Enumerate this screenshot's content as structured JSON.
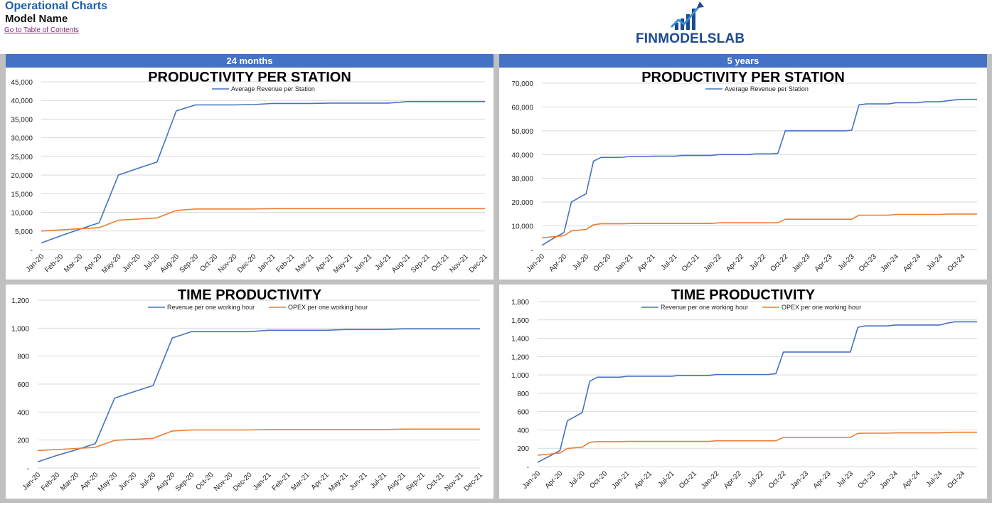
{
  "header": {
    "title": "Operational Charts",
    "model": "Model Name",
    "toc_link": "Go to Table of Contents"
  },
  "logo": {
    "text": "FINMODELSLAB"
  },
  "bands": {
    "left": "24 months",
    "right": "5  years"
  },
  "colors": {
    "revenue": "#4472c4",
    "opex": "#ed7d31",
    "band": "#4472c4",
    "grid": "#d9d9d9"
  },
  "chart_data": [
    {
      "id": "chart-tl",
      "type": "line",
      "title": "PRODUCTIVITY PER STATION",
      "ylim": [
        0,
        45000
      ],
      "yticks": [
        "-",
        "5,000",
        "10,000",
        "15,000",
        "20,000",
        "25,000",
        "30,000",
        "35,000",
        "40,000",
        "45,000"
      ],
      "ytick_values": [
        0,
        5000,
        10000,
        15000,
        20000,
        25000,
        30000,
        35000,
        40000,
        45000
      ],
      "categories": [
        "Jan-20",
        "Feb-20",
        "Mar-20",
        "Apr-20",
        "May-20",
        "Jun-20",
        "Jul-20",
        "Aug-20",
        "Sep-20",
        "Oct-20",
        "Nov-20",
        "Dec-20",
        "Jan-21",
        "Feb-21",
        "Mar-21",
        "Apr-21",
        "May-21",
        "Jun-21",
        "Jul-21",
        "Aug-21",
        "Sep-21",
        "Oct-21",
        "Nov-21",
        "Dec-21"
      ],
      "tick_labels": [
        "Jan-20",
        "Feb-20",
        "Mar-20",
        "Apr-20",
        "May-20",
        "Jun-20",
        "Jul-20",
        "Aug-20",
        "Sep-20",
        "Oct-20",
        "Nov-20",
        "Dec-20",
        "Jan-21",
        "Feb-21",
        "Mar-21",
        "Apr-21",
        "May-21",
        "Jun-21",
        "Jul-21",
        "Aug-21",
        "Sep-21",
        "Oct-21",
        "Nov-21",
        "Dec-21"
      ],
      "legend": [
        "Average Revenue per Station"
      ],
      "series": [
        {
          "name": "Average Revenue per Station",
          "color": "#4472c4",
          "values": [
            1800,
            3700,
            5500,
            7200,
            20000,
            21800,
            23500,
            37200,
            38800,
            38800,
            38800,
            38900,
            39200,
            39200,
            39200,
            39300,
            39300,
            39300,
            39300,
            39700,
            39700,
            39700,
            39700,
            39700
          ]
        },
        {
          "color": "#ed7d31",
          "values": [
            5000,
            5300,
            5600,
            5900,
            7900,
            8200,
            8500,
            10500,
            10900,
            10900,
            10900,
            10900,
            11000,
            11000,
            11000,
            11000,
            11000,
            11000,
            11000,
            11000,
            11000,
            11000,
            11000,
            11000
          ]
        }
      ]
    },
    {
      "id": "chart-tr",
      "type": "line",
      "title": "PRODUCTIVITY PER STATION",
      "ylim": [
        0,
        70000
      ],
      "yticks": [
        "-",
        "10,000",
        "20,000",
        "30,000",
        "40,000",
        "50,000",
        "60,000",
        "70,000"
      ],
      "ytick_values": [
        0,
        10000,
        20000,
        30000,
        40000,
        50000,
        60000,
        70000
      ],
      "categories": [
        "Jan-20",
        "Feb-20",
        "Mar-20",
        "Apr-20",
        "May-20",
        "Jun-20",
        "Jul-20",
        "Aug-20",
        "Sep-20",
        "Oct-20",
        "Nov-20",
        "Dec-20",
        "Jan-21",
        "Feb-21",
        "Mar-21",
        "Apr-21",
        "May-21",
        "Jun-21",
        "Jul-21",
        "Aug-21",
        "Sep-21",
        "Oct-21",
        "Nov-21",
        "Dec-21",
        "Jan-22",
        "Feb-22",
        "Mar-22",
        "Apr-22",
        "May-22",
        "Jun-22",
        "Jul-22",
        "Aug-22",
        "Sep-22",
        "Oct-22",
        "Nov-22",
        "Dec-22",
        "Jan-23",
        "Feb-23",
        "Mar-23",
        "Apr-23",
        "May-23",
        "Jun-23",
        "Jul-23",
        "Aug-23",
        "Sep-23",
        "Oct-23",
        "Nov-23",
        "Dec-23",
        "Jan-24",
        "Feb-24",
        "Mar-24",
        "Apr-24",
        "May-24",
        "Jun-24",
        "Jul-24",
        "Aug-24",
        "Sep-24",
        "Oct-24",
        "Nov-24",
        "Dec-24"
      ],
      "tick_labels": [
        "Jan-20",
        "Apr-20",
        "Jul-20",
        "Oct-20",
        "Jan-21",
        "Apr-21",
        "Jul-21",
        "Oct-21",
        "Jan-22",
        "Apr-22",
        "Jul-22",
        "Oct-22",
        "Jan-23",
        "Apr-23",
        "Jul-23",
        "Oct-23",
        "Jan-24",
        "Apr-24",
        "Jul-24",
        "Oct-24"
      ],
      "legend": [
        "Average Revenue per Station"
      ],
      "series": [
        {
          "name": "Average Revenue per Station",
          "color": "#4472c4",
          "values": [
            1800,
            3700,
            5500,
            7200,
            20000,
            21800,
            23500,
            37200,
            38800,
            38800,
            38800,
            38900,
            39200,
            39200,
            39200,
            39300,
            39300,
            39300,
            39300,
            39600,
            39600,
            39600,
            39600,
            39600,
            40000,
            40000,
            40000,
            40000,
            40000,
            40300,
            40300,
            40300,
            40500,
            50000,
            50000,
            50000,
            50000,
            50000,
            50000,
            50000,
            50000,
            50000,
            50200,
            60900,
            61300,
            61300,
            61300,
            61300,
            61800,
            61800,
            61800,
            61800,
            62200,
            62200,
            62200,
            62600,
            63000,
            63200,
            63200,
            63200
          ]
        },
        {
          "color": "#ed7d31",
          "values": [
            5000,
            5300,
            5600,
            5900,
            7900,
            8200,
            8500,
            10500,
            10900,
            10900,
            10900,
            10900,
            11000,
            11000,
            11000,
            11000,
            11000,
            11000,
            11000,
            11000,
            11000,
            11000,
            11000,
            11000,
            11300,
            11300,
            11300,
            11300,
            11300,
            11300,
            11300,
            11300,
            11300,
            12800,
            12800,
            12800,
            12800,
            12800,
            12800,
            12800,
            12800,
            12800,
            12800,
            14500,
            14500,
            14500,
            14500,
            14500,
            14800,
            14800,
            14800,
            14800,
            14800,
            14800,
            14800,
            15000,
            15000,
            15000,
            15000,
            15000
          ]
        }
      ]
    },
    {
      "id": "chart-bl",
      "type": "line",
      "title": "TIME PRODUCTIVITY",
      "ylim": [
        0,
        1200
      ],
      "yticks": [
        "-",
        "200",
        "400",
        "600",
        "800",
        "1,000",
        "1,200"
      ],
      "ytick_values": [
        0,
        200,
        400,
        600,
        800,
        1000,
        1200
      ],
      "categories": [
        "Jan-20",
        "Feb-20",
        "Mar-20",
        "Apr-20",
        "May-20",
        "Jun-20",
        "Jul-20",
        "Aug-20",
        "Sep-20",
        "Oct-20",
        "Nov-20",
        "Dec-20",
        "Jan-21",
        "Feb-21",
        "Mar-21",
        "Apr-21",
        "May-21",
        "Jun-21",
        "Jul-21",
        "Aug-21",
        "Sep-21",
        "Oct-21",
        "Nov-21",
        "Dec-21"
      ],
      "tick_labels": [
        "Jan-20",
        "Feb-20",
        "Mar-20",
        "Apr-20",
        "May-20",
        "Jun-20",
        "Jul-20",
        "Aug-20",
        "Sep-20",
        "Oct-20",
        "Nov-20",
        "Dec-20",
        "Jan-21",
        "Feb-21",
        "Mar-21",
        "Apr-21",
        "May-21",
        "Jun-21",
        "Jul-21",
        "Aug-21",
        "Sep-21",
        "Oct-21",
        "Nov-21",
        "Dec-21"
      ],
      "legend": [
        "Revenue per one working hour",
        "OPEX per one working hour"
      ],
      "series": [
        {
          "name": "Revenue per one working hour",
          "color": "#4472c4",
          "values": [
            45,
            90,
            130,
            175,
            500,
            545,
            590,
            930,
            975,
            975,
            975,
            975,
            985,
            985,
            985,
            985,
            990,
            990,
            990,
            995,
            995,
            995,
            995,
            995
          ]
        },
        {
          "name": "OPEX per one working hour",
          "color": "#ed7d31",
          "values": [
            125,
            132,
            140,
            148,
            198,
            205,
            212,
            265,
            272,
            272,
            272,
            272,
            275,
            275,
            275,
            275,
            275,
            275,
            275,
            278,
            278,
            278,
            278,
            278
          ]
        }
      ]
    },
    {
      "id": "chart-br",
      "type": "line",
      "title": "TIME PRODUCTIVITY",
      "ylim": [
        0,
        1800
      ],
      "yticks": [
        "-",
        "200",
        "400",
        "600",
        "800",
        "1,000",
        "1,200",
        "1,400",
        "1,600",
        "1,800"
      ],
      "ytick_values": [
        0,
        200,
        400,
        600,
        800,
        1000,
        1200,
        1400,
        1600,
        1800
      ],
      "categories": [
        "Jan-20",
        "Feb-20",
        "Mar-20",
        "Apr-20",
        "May-20",
        "Jun-20",
        "Jul-20",
        "Aug-20",
        "Sep-20",
        "Oct-20",
        "Nov-20",
        "Dec-20",
        "Jan-21",
        "Feb-21",
        "Mar-21",
        "Apr-21",
        "May-21",
        "Jun-21",
        "Jul-21",
        "Aug-21",
        "Sep-21",
        "Oct-21",
        "Nov-21",
        "Dec-21",
        "Jan-22",
        "Feb-22",
        "Mar-22",
        "Apr-22",
        "May-22",
        "Jun-22",
        "Jul-22",
        "Aug-22",
        "Sep-22",
        "Oct-22",
        "Nov-22",
        "Dec-22",
        "Jan-23",
        "Feb-23",
        "Mar-23",
        "Apr-23",
        "May-23",
        "Jun-23",
        "Jul-23",
        "Aug-23",
        "Sep-23",
        "Oct-23",
        "Nov-23",
        "Dec-23",
        "Jan-24",
        "Feb-24",
        "Mar-24",
        "Apr-24",
        "May-24",
        "Jun-24",
        "Jul-24",
        "Aug-24",
        "Sep-24",
        "Oct-24",
        "Nov-24",
        "Dec-24"
      ],
      "tick_labels": [
        "Jan-20",
        "Apr-20",
        "Jul-20",
        "Oct-20",
        "Jan-21",
        "Apr-21",
        "Jul-21",
        "Oct-21",
        "Jan-22",
        "Apr-22",
        "Jul-22",
        "Oct-22",
        "Jan-23",
        "Apr-23",
        "Jul-23",
        "Oct-23",
        "Jan-24",
        "Apr-24",
        "Jul-24",
        "Oct-24"
      ],
      "legend": [
        "Revenue per one working hour",
        "OPEX per one working hour"
      ],
      "series": [
        {
          "name": "Revenue per one working hour",
          "color": "#4472c4",
          "values": [
            45,
            90,
            130,
            175,
            500,
            545,
            590,
            930,
            975,
            975,
            975,
            975,
            985,
            985,
            985,
            985,
            985,
            985,
            985,
            995,
            995,
            995,
            995,
            995,
            1005,
            1005,
            1005,
            1005,
            1005,
            1005,
            1005,
            1005,
            1015,
            1250,
            1250,
            1250,
            1250,
            1250,
            1250,
            1250,
            1250,
            1250,
            1250,
            1520,
            1535,
            1535,
            1535,
            1535,
            1545,
            1545,
            1545,
            1545,
            1545,
            1545,
            1545,
            1565,
            1580,
            1580,
            1580,
            1580
          ]
        },
        {
          "name": "OPEX per one working hour",
          "color": "#ed7d31",
          "values": [
            125,
            132,
            140,
            148,
            198,
            205,
            212,
            265,
            272,
            272,
            272,
            272,
            275,
            275,
            275,
            275,
            275,
            275,
            275,
            275,
            275,
            275,
            275,
            275,
            282,
            282,
            282,
            282,
            282,
            282,
            282,
            282,
            282,
            320,
            320,
            320,
            320,
            320,
            320,
            320,
            320,
            320,
            320,
            362,
            365,
            365,
            365,
            365,
            368,
            368,
            368,
            368,
            368,
            368,
            368,
            372,
            375,
            375,
            375,
            375
          ]
        }
      ]
    }
  ]
}
